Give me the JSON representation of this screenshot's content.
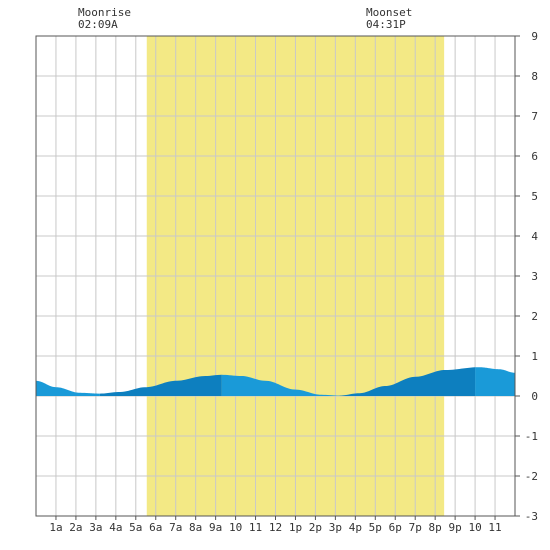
{
  "moon": {
    "rise_label": "Moonrise",
    "rise_time": "02:09A",
    "set_label": "Moonset",
    "set_time": "04:31P"
  },
  "colors": {
    "daylight": "#f3e985",
    "tide_light": "#1a9ad8",
    "tide_dark": "#0d7fbf",
    "grid": "#c8c8c8",
    "border": "#555555",
    "background": "#ffffff"
  },
  "chart_data": {
    "type": "area",
    "x_unit": "hour of day",
    "xlim": [
      0,
      24
    ],
    "ylim": [
      -3,
      9
    ],
    "y_ticks": [
      9,
      8,
      7,
      6,
      5,
      4,
      3,
      2,
      1,
      0,
      -1,
      -2,
      -3
    ],
    "x_ticks": [
      {
        "hour": 1,
        "label": "1a"
      },
      {
        "hour": 2,
        "label": "2a"
      },
      {
        "hour": 3,
        "label": "3a"
      },
      {
        "hour": 4,
        "label": "4a"
      },
      {
        "hour": 5,
        "label": "5a"
      },
      {
        "hour": 6,
        "label": "6a"
      },
      {
        "hour": 7,
        "label": "7a"
      },
      {
        "hour": 8,
        "label": "8a"
      },
      {
        "hour": 9,
        "label": "9a"
      },
      {
        "hour": 10,
        "label": "10"
      },
      {
        "hour": 11,
        "label": "11"
      },
      {
        "hour": 12,
        "label": "12"
      },
      {
        "hour": 13,
        "label": "1p"
      },
      {
        "hour": 14,
        "label": "2p"
      },
      {
        "hour": 15,
        "label": "3p"
      },
      {
        "hour": 16,
        "label": "4p"
      },
      {
        "hour": 17,
        "label": "5p"
      },
      {
        "hour": 18,
        "label": "6p"
      },
      {
        "hour": 19,
        "label": "7p"
      },
      {
        "hour": 20,
        "label": "8p"
      },
      {
        "hour": 21,
        "label": "9p"
      },
      {
        "hour": 22,
        "label": "10"
      },
      {
        "hour": 23,
        "label": "11"
      }
    ],
    "daylight": {
      "start": 5.55,
      "end": 20.45
    },
    "moonrise_hour": 2.15,
    "moonset_hour": 16.52,
    "tide_points": [
      {
        "x": 0.0,
        "y": 0.38
      },
      {
        "x": 1.0,
        "y": 0.22
      },
      {
        "x": 2.2,
        "y": 0.08
      },
      {
        "x": 3.2,
        "y": 0.06
      },
      {
        "x": 4.2,
        "y": 0.1
      },
      {
        "x": 5.5,
        "y": 0.22
      },
      {
        "x": 7.0,
        "y": 0.38
      },
      {
        "x": 8.5,
        "y": 0.5
      },
      {
        "x": 9.3,
        "y": 0.53
      },
      {
        "x": 10.3,
        "y": 0.5
      },
      {
        "x": 11.5,
        "y": 0.38
      },
      {
        "x": 13.0,
        "y": 0.16
      },
      {
        "x": 14.3,
        "y": 0.03
      },
      {
        "x": 15.2,
        "y": 0.01
      },
      {
        "x": 16.2,
        "y": 0.07
      },
      {
        "x": 17.5,
        "y": 0.25
      },
      {
        "x": 19.0,
        "y": 0.48
      },
      {
        "x": 20.5,
        "y": 0.65
      },
      {
        "x": 22.2,
        "y": 0.72
      },
      {
        "x": 23.2,
        "y": 0.67
      },
      {
        "x": 24.0,
        "y": 0.58
      }
    ],
    "tide_segments": [
      {
        "from": 0.0,
        "to": 3.2,
        "shade": "light"
      },
      {
        "from": 3.2,
        "to": 9.3,
        "shade": "dark"
      },
      {
        "from": 9.3,
        "to": 15.2,
        "shade": "light"
      },
      {
        "from": 15.2,
        "to": 22.0,
        "shade": "dark"
      },
      {
        "from": 22.0,
        "to": 24.0,
        "shade": "light"
      }
    ]
  }
}
